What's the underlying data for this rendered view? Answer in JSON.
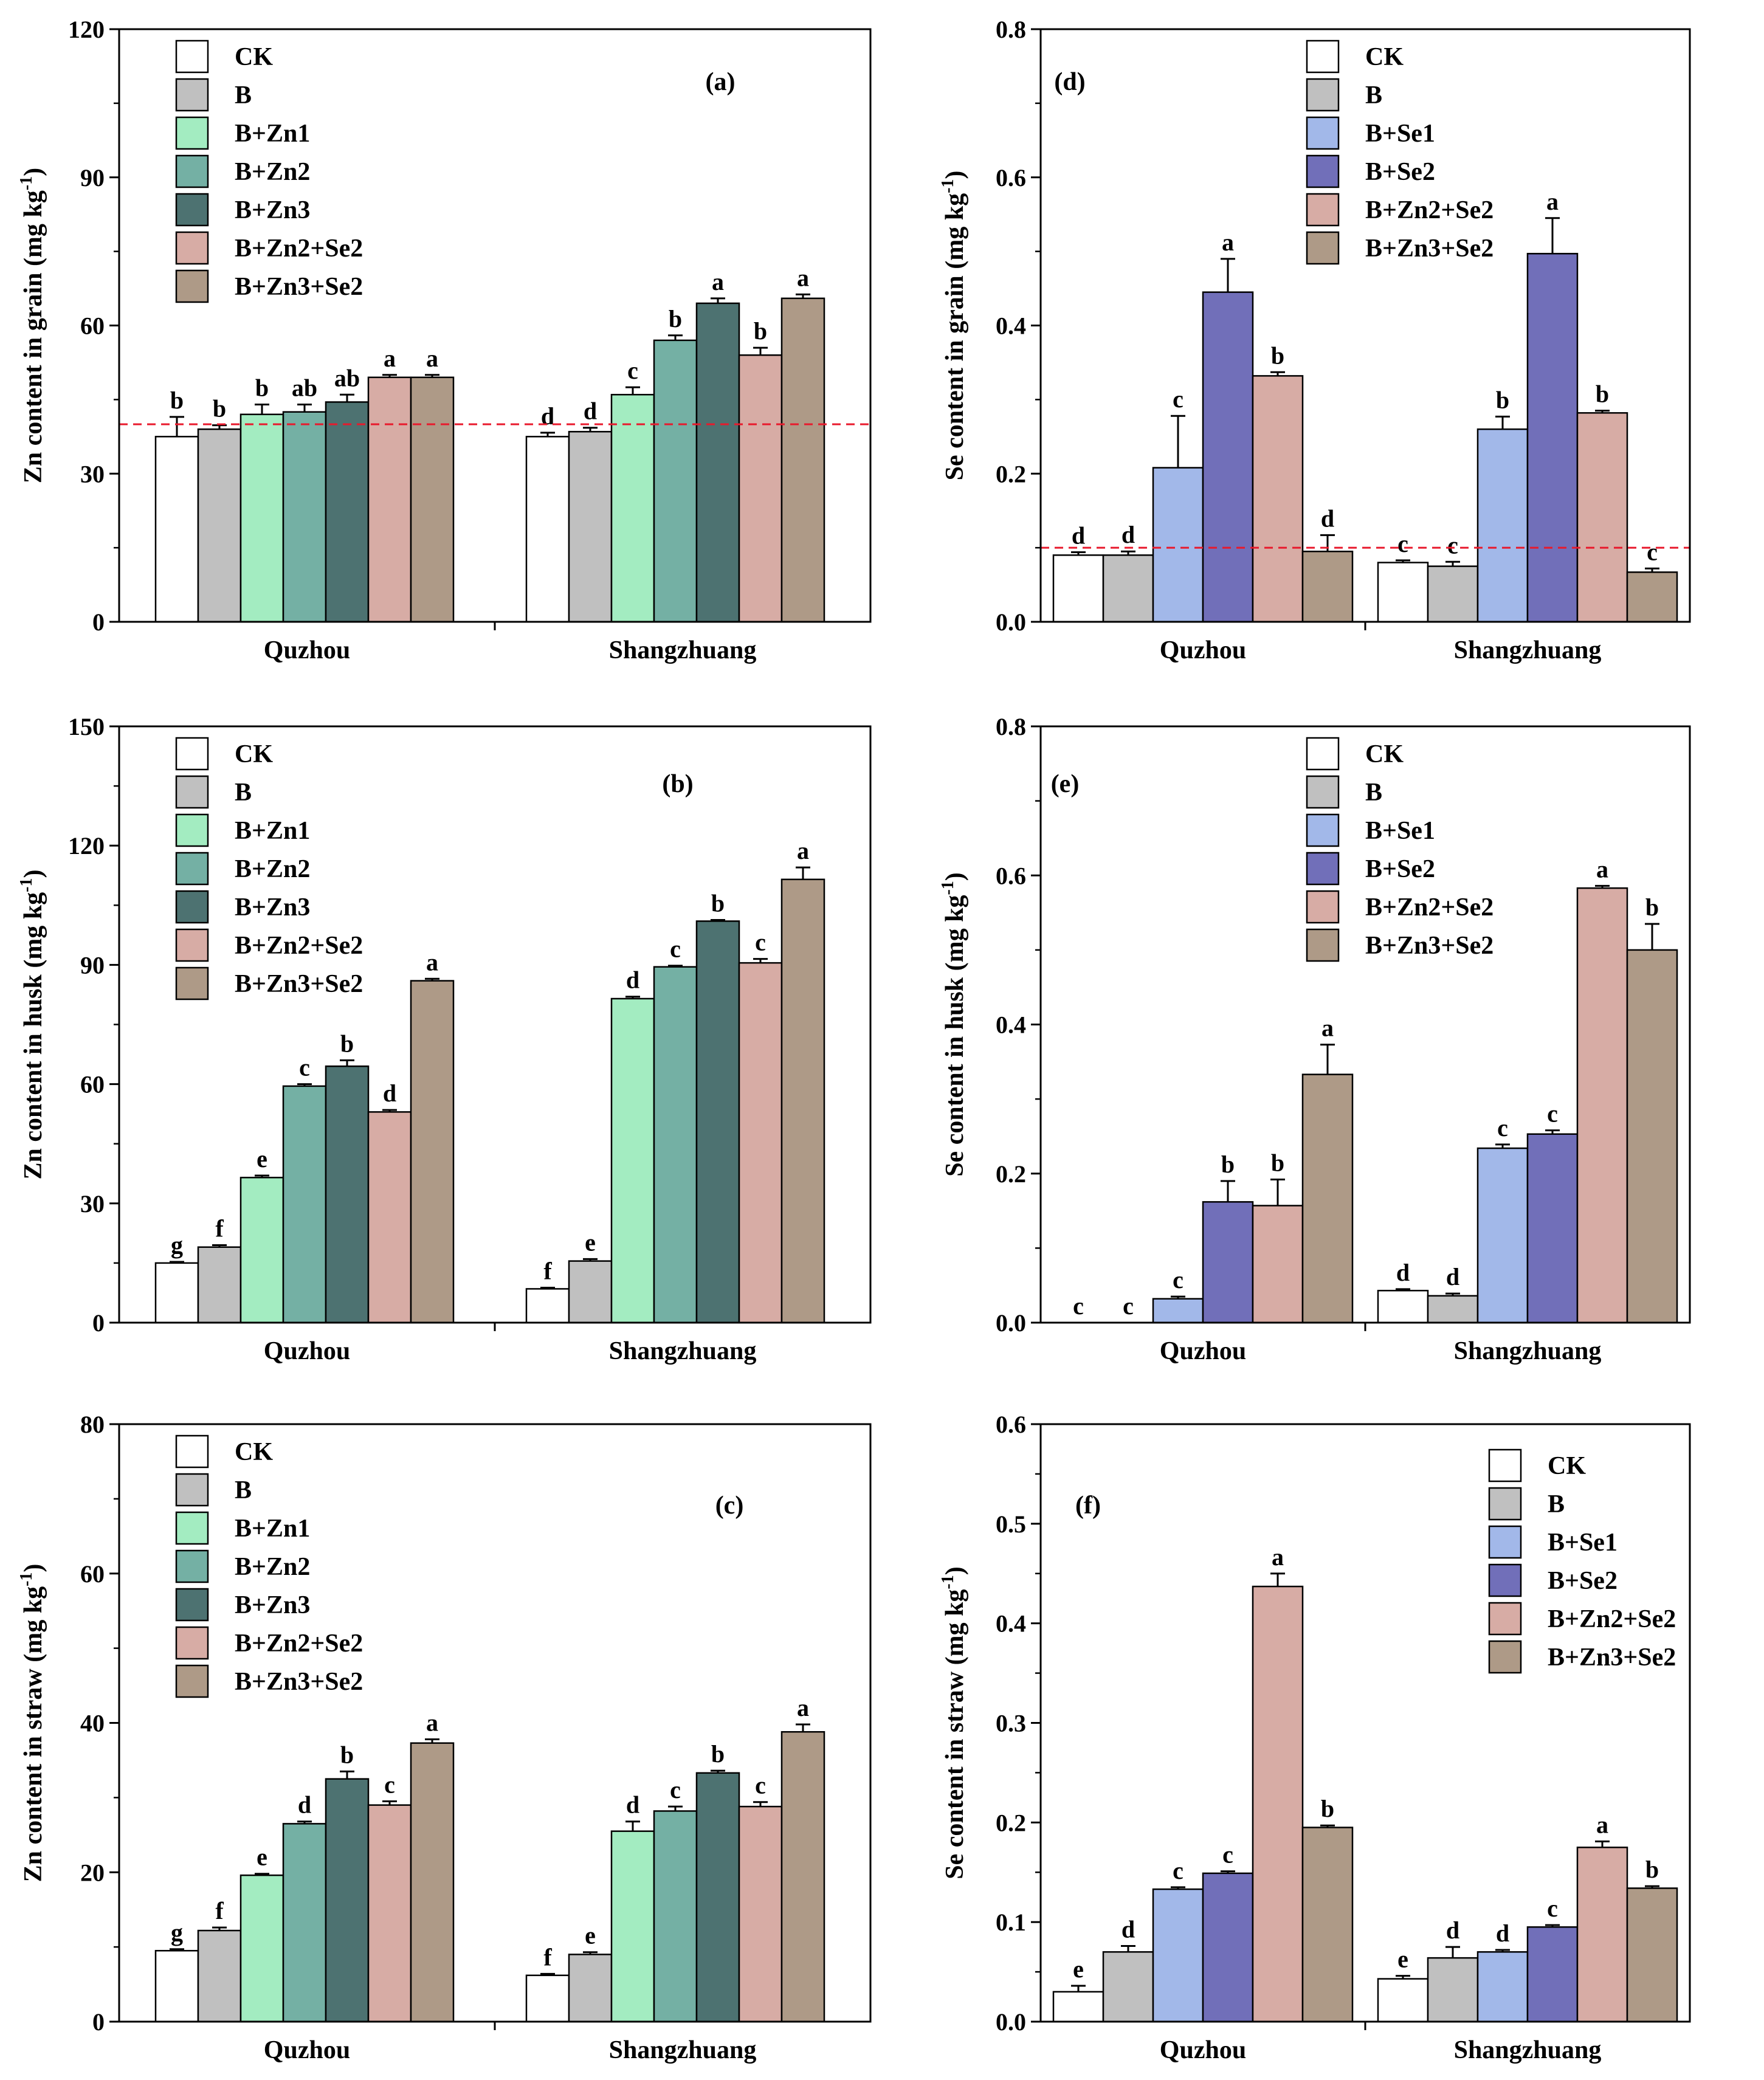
{
  "chart_data": [
    {
      "type": "bar",
      "panel": "(a)",
      "ylabel": "Zn content in grain (mg kg",
      "ylabel_sup": "-1",
      "ylim": [
        0,
        120
      ],
      "yticks": [
        0,
        30,
        60,
        90,
        120
      ],
      "categories": [
        "Quzhou",
        "Shangzhuang"
      ],
      "reference_line": 40,
      "legend_position": "top-left",
      "series": [
        {
          "name": "CK",
          "color": "#ffffff",
          "values": [
            37.5,
            37.5
          ],
          "errors": [
            4.0,
            0.8
          ],
          "letters": [
            "b",
            "d"
          ]
        },
        {
          "name": "B",
          "color": "#c0c0c0",
          "values": [
            39.0,
            38.5
          ],
          "errors": [
            0.8,
            0.8
          ],
          "letters": [
            "b",
            "d"
          ]
        },
        {
          "name": "B+Zn1",
          "color": "#a3ecc1",
          "values": [
            42.0,
            46.0
          ],
          "errors": [
            2.0,
            1.5
          ],
          "letters": [
            "b",
            "c"
          ]
        },
        {
          "name": "B+Zn2",
          "color": "#74b0a4",
          "values": [
            42.5,
            57.0
          ],
          "errors": [
            1.5,
            1.0
          ],
          "letters": [
            "ab",
            "b"
          ]
        },
        {
          "name": "B+Zn3",
          "color": "#4d7271",
          "values": [
            44.5,
            64.5
          ],
          "errors": [
            1.5,
            1.0
          ],
          "letters": [
            "ab",
            "a"
          ]
        },
        {
          "name": "B+Zn2+Se2",
          "color": "#d7aca5",
          "values": [
            49.5,
            54.0
          ],
          "errors": [
            0.5,
            1.5
          ],
          "letters": [
            "a",
            "b"
          ]
        },
        {
          "name": "B+Zn3+Se2",
          "color": "#ae9a87",
          "values": [
            49.5,
            65.5
          ],
          "errors": [
            0.5,
            0.8
          ],
          "letters": [
            "a",
            "a"
          ]
        }
      ]
    },
    {
      "type": "bar",
      "panel": "(b)",
      "ylabel": "Zn content in husk (mg kg",
      "ylabel_sup": "-1",
      "ylim": [
        0,
        150
      ],
      "yticks": [
        0,
        30,
        60,
        90,
        120,
        150
      ],
      "categories": [
        "Quzhou",
        "Shangzhuang"
      ],
      "legend_position": "top-left",
      "series": [
        {
          "name": "CK",
          "color": "#ffffff",
          "values": [
            15.0,
            8.5
          ],
          "errors": [
            0.3,
            0.3
          ],
          "letters": [
            "g",
            "f"
          ]
        },
        {
          "name": "B",
          "color": "#c0c0c0",
          "values": [
            19.0,
            15.5
          ],
          "errors": [
            0.5,
            0.5
          ],
          "letters": [
            "f",
            "e"
          ]
        },
        {
          "name": "B+Zn1",
          "color": "#a3ecc1",
          "values": [
            36.5,
            81.5
          ],
          "errors": [
            0.5,
            0.5
          ],
          "letters": [
            "e",
            "d"
          ]
        },
        {
          "name": "B+Zn2",
          "color": "#74b0a4",
          "values": [
            59.5,
            89.5
          ],
          "errors": [
            0.5,
            0.3
          ],
          "letters": [
            "c",
            "c"
          ]
        },
        {
          "name": "B+Zn3",
          "color": "#4d7271",
          "values": [
            64.5,
            101.0
          ],
          "errors": [
            1.5,
            0.3
          ],
          "letters": [
            "b",
            "b"
          ]
        },
        {
          "name": "B+Zn2+Se2",
          "color": "#d7aca5",
          "values": [
            53.0,
            90.5
          ],
          "errors": [
            0.5,
            1.0
          ],
          "letters": [
            "d",
            "c"
          ]
        },
        {
          "name": "B+Zn3+Se2",
          "color": "#ae9a87",
          "values": [
            86.0,
            111.5
          ],
          "errors": [
            0.5,
            3.0
          ],
          "letters": [
            "a",
            "a"
          ]
        }
      ]
    },
    {
      "type": "bar",
      "panel": "(c)",
      "ylabel": "Zn content in straw (mg kg",
      "ylabel_sup": "-1",
      "ylim": [
        0,
        80
      ],
      "yticks": [
        0,
        20,
        40,
        60,
        80
      ],
      "categories": [
        "Quzhou",
        "Shangzhuang"
      ],
      "legend_position": "top-left",
      "series": [
        {
          "name": "CK",
          "color": "#ffffff",
          "values": [
            9.5,
            6.2
          ],
          "errors": [
            0.2,
            0.2
          ],
          "letters": [
            "g",
            "f"
          ]
        },
        {
          "name": "B",
          "color": "#c0c0c0",
          "values": [
            12.2,
            9.0
          ],
          "errors": [
            0.4,
            0.3
          ],
          "letters": [
            "f",
            "e"
          ]
        },
        {
          "name": "B+Zn1",
          "color": "#a3ecc1",
          "values": [
            19.6,
            25.5
          ],
          "errors": [
            0.2,
            1.3
          ],
          "letters": [
            "e",
            "d"
          ]
        },
        {
          "name": "B+Zn2",
          "color": "#74b0a4",
          "values": [
            26.5,
            28.2
          ],
          "errors": [
            0.3,
            0.6
          ],
          "letters": [
            "d",
            "c"
          ]
        },
        {
          "name": "B+Zn3",
          "color": "#4d7271",
          "values": [
            32.5,
            33.3
          ],
          "errors": [
            1.0,
            0.3
          ],
          "letters": [
            "b",
            "b"
          ]
        },
        {
          "name": "B+Zn2+Se2",
          "color": "#d7aca5",
          "values": [
            29.0,
            28.8
          ],
          "errors": [
            0.5,
            0.6
          ],
          "letters": [
            "c",
            "c"
          ]
        },
        {
          "name": "B+Zn3+Se2",
          "color": "#ae9a87",
          "values": [
            37.3,
            38.8
          ],
          "errors": [
            0.5,
            1.0
          ],
          "letters": [
            "a",
            "a"
          ]
        }
      ]
    },
    {
      "type": "bar",
      "panel": "(d)",
      "ylabel": "Se content in grain (mg kg",
      "ylabel_sup": "-1",
      "ylim": [
        0,
        0.8
      ],
      "yticks": [
        0.0,
        0.2,
        0.4,
        0.6,
        0.8
      ],
      "categories": [
        "Quzhou",
        "Shangzhuang"
      ],
      "reference_line": 0.1,
      "legend_position": "top-center",
      "series": [
        {
          "name": "CK",
          "color": "#ffffff",
          "values": [
            0.09,
            0.08
          ],
          "errors": [
            0.004,
            0.003
          ],
          "letters": [
            "d",
            "c"
          ]
        },
        {
          "name": "B",
          "color": "#c0c0c0",
          "values": [
            0.09,
            0.075
          ],
          "errors": [
            0.005,
            0.006
          ],
          "letters": [
            "d",
            "c"
          ]
        },
        {
          "name": "B+Se1",
          "color": "#a2b8e9",
          "values": [
            0.208,
            0.26
          ],
          "errors": [
            0.07,
            0.017
          ],
          "letters": [
            "c",
            "b"
          ]
        },
        {
          "name": "B+Se2",
          "color": "#716fb9",
          "values": [
            0.445,
            0.497
          ],
          "errors": [
            0.045,
            0.048
          ],
          "letters": [
            "a",
            "a"
          ]
        },
        {
          "name": "B+Zn2+Se2",
          "color": "#d7aca5",
          "values": [
            0.332,
            0.282
          ],
          "errors": [
            0.005,
            0.003
          ],
          "letters": [
            "b",
            "b"
          ]
        },
        {
          "name": "B+Zn3+Se2",
          "color": "#ae9a87",
          "values": [
            0.095,
            0.067
          ],
          "errors": [
            0.022,
            0.005
          ],
          "letters": [
            "d",
            "c"
          ]
        }
      ]
    },
    {
      "type": "bar",
      "panel": "(e)",
      "ylabel": "Se content in husk (mg kg",
      "ylabel_sup": "-1",
      "ylim": [
        0,
        0.8
      ],
      "yticks": [
        0.0,
        0.2,
        0.4,
        0.6,
        0.8
      ],
      "categories": [
        "Quzhou",
        "Shangzhuang"
      ],
      "legend_position": "top-center",
      "series": [
        {
          "name": "CK",
          "color": "#ffffff",
          "values": [
            0.0,
            0.043
          ],
          "errors": [
            0.0,
            0.002
          ],
          "letters": [
            "c",
            "d"
          ]
        },
        {
          "name": "B",
          "color": "#c0c0c0",
          "values": [
            0.0,
            0.036
          ],
          "errors": [
            0.0,
            0.003
          ],
          "letters": [
            "c",
            "d"
          ]
        },
        {
          "name": "B+Se1",
          "color": "#a2b8e9",
          "values": [
            0.032,
            0.234
          ],
          "errors": [
            0.003,
            0.005
          ],
          "letters": [
            "c",
            "c"
          ]
        },
        {
          "name": "B+Se2",
          "color": "#716fb9",
          "values": [
            0.162,
            0.253
          ],
          "errors": [
            0.028,
            0.005
          ],
          "letters": [
            "b",
            "c"
          ]
        },
        {
          "name": "B+Zn2+Se2",
          "color": "#d7aca5",
          "values": [
            0.157,
            0.583
          ],
          "errors": [
            0.035,
            0.003
          ],
          "letters": [
            "b",
            "a"
          ]
        },
        {
          "name": "B+Zn3+Se2",
          "color": "#ae9a87",
          "values": [
            0.333,
            0.5
          ],
          "errors": [
            0.04,
            0.035
          ],
          "letters": [
            "a",
            "b"
          ]
        }
      ]
    },
    {
      "type": "bar",
      "panel": "(f)",
      "ylabel": "Se content in straw (mg kg",
      "ylabel_sup": "-1",
      "ylim": [
        0,
        0.6
      ],
      "yticks": [
        0.0,
        0.1,
        0.2,
        0.3,
        0.4,
        0.5,
        0.6
      ],
      "categories": [
        "Quzhou",
        "Shangzhuang"
      ],
      "legend_position": "top-right",
      "series": [
        {
          "name": "CK",
          "color": "#ffffff",
          "values": [
            0.03,
            0.043
          ],
          "errors": [
            0.006,
            0.003
          ],
          "letters": [
            "e",
            "e"
          ]
        },
        {
          "name": "B",
          "color": "#c0c0c0",
          "values": [
            0.07,
            0.064
          ],
          "errors": [
            0.006,
            0.011
          ],
          "letters": [
            "d",
            "d"
          ]
        },
        {
          "name": "B+Se1",
          "color": "#a2b8e9",
          "values": [
            0.133,
            0.07
          ],
          "errors": [
            0.002,
            0.002
          ],
          "letters": [
            "c",
            "d"
          ]
        },
        {
          "name": "B+Se2",
          "color": "#716fb9",
          "values": [
            0.149,
            0.095
          ],
          "errors": [
            0.002,
            0.002
          ],
          "letters": [
            "c",
            "c"
          ]
        },
        {
          "name": "B+Zn2+Se2",
          "color": "#d7aca5",
          "values": [
            0.437,
            0.175
          ],
          "errors": [
            0.013,
            0.006
          ],
          "letters": [
            "a",
            "a"
          ]
        },
        {
          "name": "B+Zn3+Se2",
          "color": "#ae9a87",
          "values": [
            0.195,
            0.134
          ],
          "errors": [
            0.002,
            0.002
          ],
          "letters": [
            "b",
            "b"
          ]
        }
      ]
    }
  ]
}
